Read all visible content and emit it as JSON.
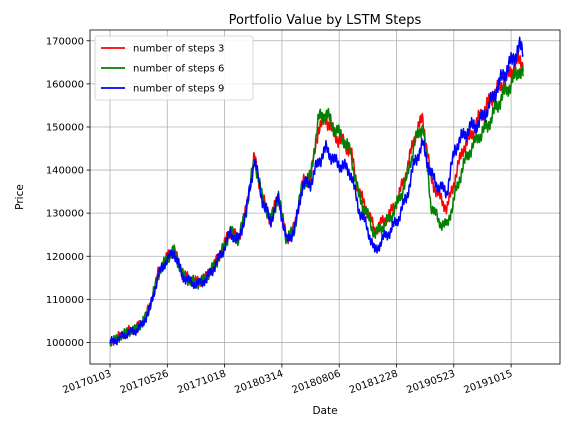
{
  "chart_data": {
    "type": "line",
    "title": "Portfolio Value by LSTM Steps",
    "xlabel": "Date",
    "ylabel": "Price",
    "grid": true,
    "legend_position": "top-left",
    "x_tick_labels": [
      "20170103",
      "20170526",
      "20171018",
      "20180314",
      "20180806",
      "20181228",
      "20190523",
      "20191015"
    ],
    "y_ticks": [
      100000,
      110000,
      120000,
      130000,
      140000,
      150000,
      160000,
      170000
    ],
    "ylim": [
      95000,
      172500
    ],
    "x_keys": [
      0,
      14,
      28,
      42,
      56,
      70,
      84,
      98,
      112,
      126,
      140,
      154,
      168,
      182,
      196,
      210,
      224,
      238,
      252,
      266,
      280,
      294,
      308,
      322,
      336,
      350,
      364,
      378,
      392,
      406,
      420,
      434,
      448,
      462,
      476,
      490,
      504,
      518,
      532,
      546,
      560,
      574,
      588,
      602,
      616,
      630,
      644,
      658,
      672,
      686,
      700,
      714,
      721
    ],
    "x_index_of_first_tick": 0,
    "x_index_step_per_tick": 100,
    "series": [
      {
        "name": "number of steps 3",
        "color": "#ff0000",
        "values": [
          100000,
          101200,
          102500,
          103100,
          104500,
          108500,
          116000,
          119500,
          121500,
          116000,
          114500,
          114000,
          115200,
          118000,
          121500,
          126000,
          124000,
          131000,
          143000,
          133500,
          128500,
          134000,
          124000,
          126500,
          137000,
          138000,
          150000,
          152000,
          148000,
          146500,
          144500,
          135000,
          131000,
          126000,
          128000,
          130000,
          134000,
          140000,
          148000,
          152000,
          138000,
          134000,
          131000,
          138000,
          145000,
          148000,
          152000,
          155000,
          158000,
          160000,
          163000,
          165500,
          165000
        ]
      },
      {
        "name": "number of steps 6",
        "color": "#008000",
        "values": [
          100000,
          101000,
          102300,
          102900,
          104300,
          108300,
          115800,
          119300,
          121300,
          115800,
          114300,
          113800,
          115000,
          117800,
          121300,
          125800,
          123800,
          130800,
          142800,
          133300,
          128300,
          133800,
          123800,
          126300,
          136800,
          138500,
          152000,
          153000,
          149500,
          147500,
          144000,
          134000,
          130000,
          125000,
          127000,
          129000,
          133000,
          138000,
          146500,
          150500,
          132000,
          128000,
          127000,
          134000,
          141000,
          145000,
          148000,
          150000,
          154000,
          157500,
          160000,
          163500,
          162000
        ]
      },
      {
        "name": "number of steps 9",
        "color": "#0000ff",
        "values": [
          100000,
          100800,
          102000,
          102600,
          104000,
          108000,
          115500,
          119000,
          121000,
          115500,
          114000,
          113500,
          114700,
          117500,
          121000,
          125500,
          123500,
          130500,
          142500,
          133000,
          128000,
          133500,
          123500,
          126000,
          136500,
          137000,
          142000,
          145000,
          142000,
          141000,
          139500,
          131000,
          127000,
          121000,
          124000,
          126000,
          129000,
          134000,
          142000,
          146000,
          139000,
          136000,
          135000,
          145000,
          148000,
          150000,
          151000,
          154000,
          158000,
          162000,
          165000,
          168500,
          167500
        ]
      }
    ]
  }
}
